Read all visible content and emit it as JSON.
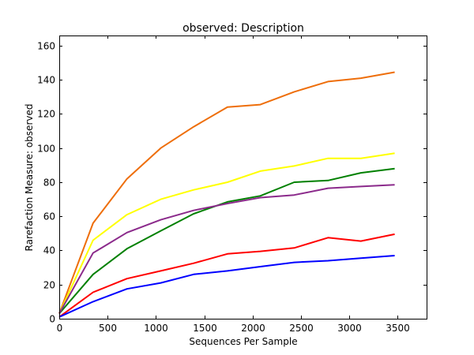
{
  "chart_data": {
    "type": "line",
    "title": "observed: Description",
    "xlabel": "Sequences Per Sample",
    "ylabel": "Rarefaction Measure: observed",
    "xlim": [
      0,
      3800
    ],
    "ylim": [
      0,
      166
    ],
    "xticks": [
      0,
      500,
      1000,
      1500,
      2000,
      2500,
      3000,
      3500
    ],
    "yticks": [
      0,
      20,
      40,
      60,
      80,
      100,
      120,
      140,
      160
    ],
    "grid": false,
    "x": [
      0,
      350,
      700,
      1050,
      1390,
      1740,
      2080,
      2430,
      2780,
      3120,
      3470
    ],
    "series": [
      {
        "color": "#ee6e0a",
        "values": [
          3,
          56,
          82,
          100,
          112.5,
          124,
          125.5,
          133,
          139,
          141,
          144.5
        ]
      },
      {
        "color": "#ffff00",
        "values": [
          3,
          46,
          61,
          70,
          75.5,
          80,
          86.5,
          89.5,
          94,
          94,
          97
        ]
      },
      {
        "color": "#008000",
        "values": [
          3,
          26,
          41,
          51.5,
          61.5,
          68.5,
          72,
          80,
          81,
          85.5,
          88
        ]
      },
      {
        "color": "#8b2a8b",
        "values": [
          3,
          38.5,
          50.5,
          58,
          63.5,
          67.5,
          71,
          72.5,
          76.5,
          77.5,
          78.5
        ]
      },
      {
        "color": "#ff0000",
        "values": [
          1,
          15.5,
          23.5,
          28,
          32.5,
          38,
          39.5,
          41.5,
          47.5,
          45.5,
          49.5
        ]
      },
      {
        "color": "#0000ff",
        "values": [
          1,
          10,
          17.5,
          21,
          26,
          28,
          30.5,
          33,
          34,
          35.5,
          37
        ]
      }
    ]
  }
}
